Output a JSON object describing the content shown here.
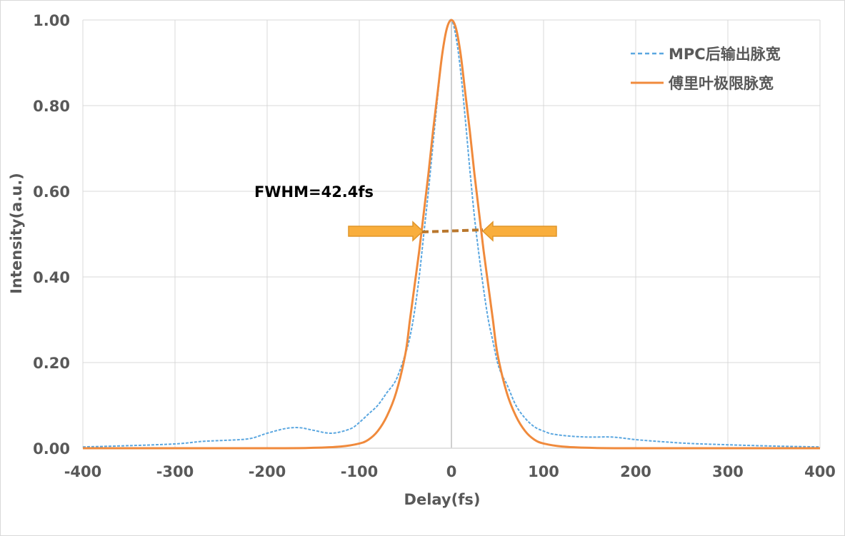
{
  "chart_data": {
    "type": "line",
    "xlabel": "Delay(fs)",
    "ylabel": "Intensity(a.u.)",
    "xlim": [
      -400,
      400
    ],
    "ylim": [
      0,
      1
    ],
    "x_ticks": [
      "-400",
      "-300",
      "-200",
      "-100",
      "0",
      "100",
      "200",
      "300",
      "400"
    ],
    "y_ticks": [
      "0.00",
      "0.20",
      "0.40",
      "0.60",
      "0.80",
      "1.00"
    ],
    "grid": true,
    "legend_position": "top-right",
    "annotation": "FWHM=42.4fs",
    "fwhm_marker_y": 0.51,
    "series": [
      {
        "name": "MPC后输出脉宽",
        "style": "dashed",
        "color": "#5BA7E0",
        "x": [
          -400,
          -350,
          -300,
          -270,
          -250,
          -220,
          -200,
          -180,
          -165,
          -150,
          -130,
          -110,
          -100,
          -90,
          -80,
          -70,
          -60,
          -50,
          -45,
          -40,
          -35,
          -30,
          -25,
          -20,
          -15,
          -10,
          -5,
          0,
          5,
          10,
          15,
          20,
          25,
          30,
          35,
          40,
          45,
          50,
          55,
          60,
          70,
          80,
          90,
          100,
          110,
          130,
          150,
          175,
          200,
          230,
          260,
          300,
          350,
          400
        ],
        "values": [
          0.003,
          0.006,
          0.01,
          0.016,
          0.018,
          0.022,
          0.035,
          0.046,
          0.048,
          0.042,
          0.035,
          0.045,
          0.06,
          0.08,
          0.1,
          0.13,
          0.16,
          0.22,
          0.26,
          0.32,
          0.4,
          0.5,
          0.6,
          0.71,
          0.82,
          0.92,
          0.98,
          1.0,
          0.96,
          0.88,
          0.77,
          0.65,
          0.54,
          0.45,
          0.37,
          0.3,
          0.25,
          0.2,
          0.17,
          0.15,
          0.1,
          0.07,
          0.05,
          0.04,
          0.033,
          0.028,
          0.026,
          0.026,
          0.02,
          0.015,
          0.011,
          0.008,
          0.005,
          0.003
        ]
      },
      {
        "name": "傅里叶极限脉宽",
        "style": "solid",
        "color": "#F08A3C",
        "x": [
          -400,
          -200,
          -150,
          -120,
          -100,
          -90,
          -80,
          -70,
          -60,
          -50,
          -45,
          -40,
          -35,
          -30,
          -25,
          -20,
          -15,
          -10,
          -5,
          0,
          5,
          10,
          15,
          20,
          25,
          30,
          35,
          40,
          45,
          50,
          60,
          70,
          80,
          90,
          100,
          120,
          150,
          200,
          400
        ],
        "values": [
          0,
          0,
          0.001,
          0.004,
          0.011,
          0.02,
          0.04,
          0.075,
          0.13,
          0.22,
          0.3,
          0.38,
          0.46,
          0.55,
          0.64,
          0.74,
          0.83,
          0.92,
          0.98,
          1.0,
          0.98,
          0.92,
          0.83,
          0.74,
          0.64,
          0.55,
          0.46,
          0.38,
          0.3,
          0.22,
          0.13,
          0.075,
          0.04,
          0.02,
          0.011,
          0.004,
          0.001,
          0,
          0
        ]
      }
    ]
  }
}
